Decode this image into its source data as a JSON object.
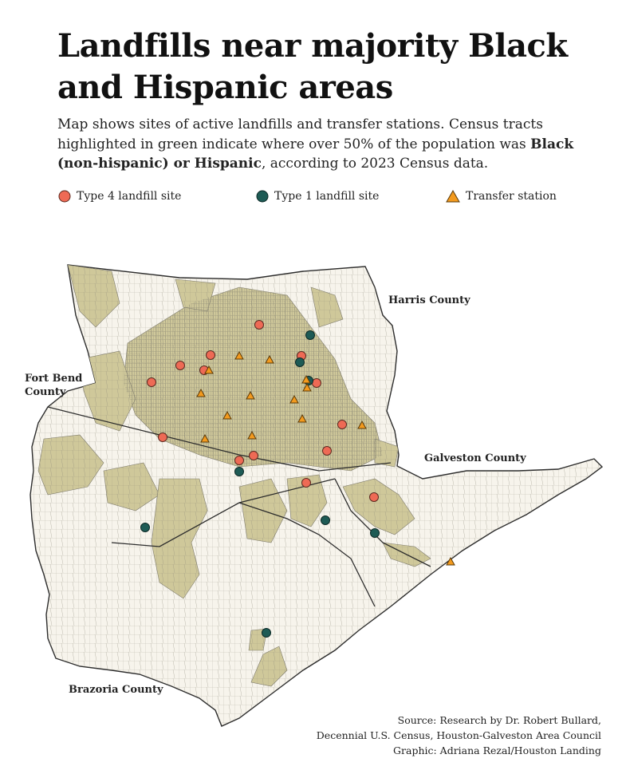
{
  "title": "Landfills near majority Black and Hispanic areas",
  "subtitle": {
    "part1": "Map shows sites of active landfills and transfer stations. Census tracts highlighted in green indicate where over 50% of the population was ",
    "bold": "Black (non-hispanic) or Hispanic",
    "part2": ", according to 2023 Census data."
  },
  "legend": [
    {
      "label": "Type 4 landfill site",
      "symbol": "circle",
      "color": "#ee6a55"
    },
    {
      "label": "Type 1 landfill site",
      "symbol": "circle",
      "color": "#1e5b55"
    },
    {
      "label": "Transfer station",
      "symbol": "triangle",
      "color": "#f39a1e"
    }
  ],
  "counties": [
    "Harris County",
    "Fort Bend County",
    "Galveston County",
    "Brazoria County"
  ],
  "colors": {
    "tract_majority": "#cfc89a",
    "tract_other": "#f7f4ec",
    "tract_border": "#7d7a6c",
    "county_border": "#2c2c2c",
    "type4": "#ee6a55",
    "type1": "#1e5b55",
    "transfer": "#f39a1e"
  },
  "source": {
    "line1": "Source: Research by Dr. Robert Bullard,",
    "line2": "Decennial U.S. Census, Houston-Galveston Area Council",
    "line3": "Graphic: Adriana Rezal/Houston Landing"
  }
}
